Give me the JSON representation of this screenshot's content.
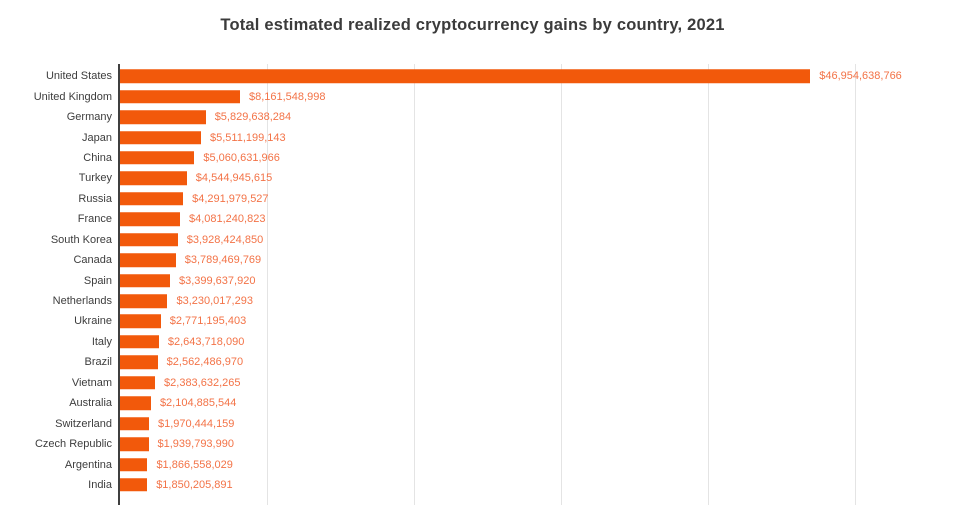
{
  "title": "Total estimated realized cryptocurrency gains by country, 2021",
  "chart_data": {
    "type": "bar",
    "orientation": "horizontal",
    "title": "Total estimated realized cryptocurrency gains by country, 2021",
    "categories": [
      "United States",
      "United Kingdom",
      "Germany",
      "Japan",
      "China",
      "Turkey",
      "Russia",
      "France",
      "South Korea",
      "Canada",
      "Spain",
      "Netherlands",
      "Ukraine",
      "Italy",
      "Brazil",
      "Vietnam",
      "Australia",
      "Switzerland",
      "Czech Republic",
      "Argentina",
      "India"
    ],
    "values": [
      46954638766,
      8161548998,
      5829638284,
      5511199143,
      5060631966,
      4544945615,
      4291979527,
      4081240823,
      3928424850,
      3789469769,
      3399637920,
      3230017293,
      2771195403,
      2643718090,
      2562486970,
      2383632265,
      2104885544,
      1970444159,
      1939793990,
      1866558029,
      1850205891
    ],
    "value_labels": [
      "$46,954,638,766",
      "$8,161,548,998",
      "$5,829,638,284",
      "$5,511,199,143",
      "$5,060,631,966",
      "$4,544,945,615",
      "$4,291,979,527",
      "$4,081,240,823",
      "$3,928,424,850",
      "$3,789,469,769",
      "$3,399,637,920",
      "$3,230,017,293",
      "$2,771,195,403",
      "$2,643,718,090",
      "$2,562,486,970",
      "$2,383,632,265",
      "$2,104,885,544",
      "$1,970,444,159",
      "$1,939,793,990",
      "$1,866,558,029",
      "$1,850,205,891"
    ],
    "xlim": [
      0,
      55000000000
    ],
    "gridline_interval": 10000000000,
    "gridline_count": 5,
    "grid": true,
    "legend_position": "none",
    "bar_color": "#f2590b",
    "value_label_color": "#f37347",
    "category_label_color": "#3d3d3d",
    "axis_color": "#3f3f3f",
    "gridline_color": "#e4e4e4",
    "background_color": "#ffffff"
  }
}
